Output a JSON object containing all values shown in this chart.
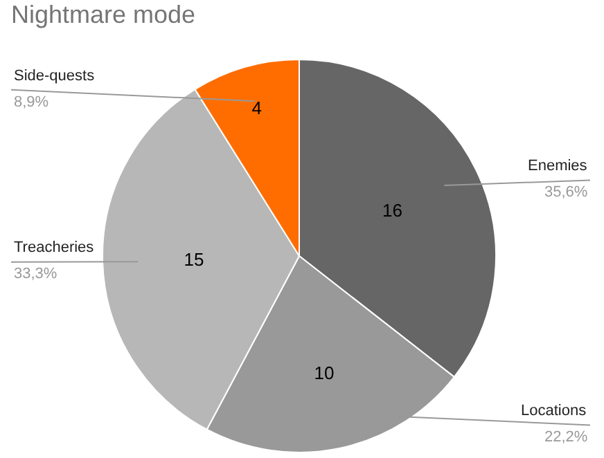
{
  "chart_data": {
    "type": "pie",
    "title": "Nightmare mode",
    "categories": [
      "Enemies",
      "Locations",
      "Treacheries",
      "Side-quests"
    ],
    "values": [
      16,
      10,
      15,
      4
    ],
    "colors": [
      "#666666",
      "#999999",
      "#b7b7b7",
      "#ff6d01"
    ],
    "value_labels": [
      "16",
      "10",
      "15",
      "4"
    ],
    "annotations": [
      "35,6%",
      "22,2%",
      "33,3%",
      "8,9%"
    ],
    "legend": false
  }
}
